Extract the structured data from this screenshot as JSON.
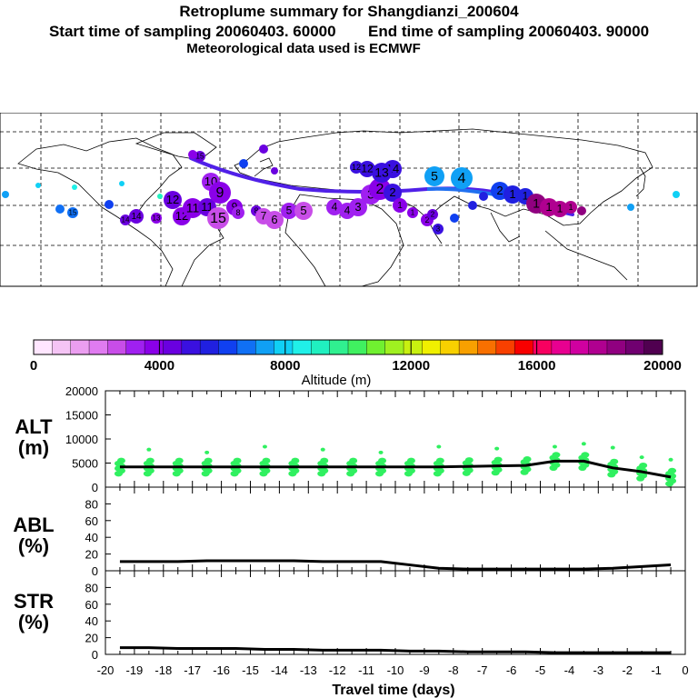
{
  "header": {
    "title": "Retroplume summary for Shangdianzi_200604",
    "subtitle_start": "Start time of sampling 20060403. 60000",
    "subtitle_end": "End time of sampling 20060403. 90000",
    "met_line": "Meteorological data used is ECMWF"
  },
  "colorbar": {
    "label": "Altitude (m)",
    "tick_labels": [
      "0",
      "4000",
      "8000",
      "12000",
      "16000",
      "20000"
    ],
    "colors": [
      "#ffe6ff",
      "#f5c4f5",
      "#eb9ef0",
      "#e07bf0",
      "#c84de8",
      "#a020f0",
      "#8a00e8",
      "#6a00e0",
      "#3a10e0",
      "#2020e0",
      "#1040f0",
      "#1070f5",
      "#10a0f5",
      "#10d0f5",
      "#20f0e8",
      "#20f0c0",
      "#30f090",
      "#40f060",
      "#70f030",
      "#a0f020",
      "#c8f010",
      "#f0f000",
      "#f8d000",
      "#f8a000",
      "#f87000",
      "#f84000",
      "#f80000",
      "#f80060",
      "#e80090",
      "#d000a0",
      "#b00090",
      "#900080",
      "#700070",
      "#500050"
    ]
  },
  "map": {
    "plume_numbers": [
      "15",
      "14",
      "13",
      "12",
      "11",
      "10",
      "9",
      "8",
      "7",
      "6",
      "5",
      "4",
      "3",
      "2",
      "1"
    ]
  },
  "chart_data": [
    {
      "type": "line",
      "panel": "ALT",
      "ylabel_line1": "ALT",
      "ylabel_line2": "(m)",
      "ylim": [
        0,
        20000
      ],
      "y_ticks": [
        "0",
        "5000",
        "10000",
        "15000",
        "20000"
      ],
      "xlim": [
        -20,
        0
      ],
      "x": [
        -19.5,
        -18.5,
        -17.5,
        -16.5,
        -15.5,
        -14.5,
        -13.5,
        -12.5,
        -11.5,
        -10.5,
        -9.5,
        -8.5,
        -7.5,
        -6.5,
        -5.5,
        -4.5,
        -3.5,
        -2.5,
        -1.5,
        -0.5
      ],
      "series": [
        {
          "name": "median altitude",
          "values": [
            4200,
            4200,
            4200,
            4200,
            4200,
            4200,
            4200,
            4200,
            4200,
            4200,
            4200,
            4200,
            4300,
            4400,
            4500,
            5400,
            5400,
            4000,
            3200,
            2100
          ]
        }
      ]
    },
    {
      "type": "line",
      "panel": "ABL",
      "ylabel_line1": "ABL",
      "ylabel_line2": "(%)",
      "ylim": [
        0,
        100
      ],
      "y_ticks": [
        "0",
        "20",
        "40",
        "60",
        "80"
      ],
      "xlim": [
        -20,
        0
      ],
      "x": [
        -19.5,
        -18.5,
        -17.5,
        -16.5,
        -15.5,
        -14.5,
        -13.5,
        -12.5,
        -11.5,
        -10.5,
        -9.5,
        -8.5,
        -7.5,
        -6.5,
        -5.5,
        -4.5,
        -3.5,
        -2.5,
        -1.5,
        -0.5
      ],
      "series": [
        {
          "name": "ABL fraction",
          "values": [
            11,
            11,
            11,
            12,
            12,
            12,
            12,
            11,
            11,
            11,
            7,
            3,
            2,
            2,
            2,
            2,
            2,
            3,
            5,
            7
          ]
        }
      ]
    },
    {
      "type": "line",
      "panel": "STR",
      "ylabel_line1": "STR",
      "ylabel_line2": "(%)",
      "ylim": [
        0,
        100
      ],
      "y_ticks": [
        "0",
        "20",
        "40",
        "60",
        "80"
      ],
      "xlim": [
        -20,
        0
      ],
      "xlabel": "Travel time (days)",
      "x_ticks": [
        "-20",
        "-19",
        "-18",
        "-17",
        "-16",
        "-15",
        "-14",
        "-13",
        "-12",
        "-11",
        "-10",
        "-9",
        "-8",
        "-7",
        "-6",
        "-5",
        "-4",
        "-3",
        "-2",
        "-1",
        "0"
      ],
      "x": [
        -19.5,
        -18.5,
        -17.5,
        -16.5,
        -15.5,
        -14.5,
        -13.5,
        -12.5,
        -11.5,
        -10.5,
        -9.5,
        -8.5,
        -7.5,
        -6.5,
        -5.5,
        -4.5,
        -3.5,
        -2.5,
        -1.5,
        -0.5
      ],
      "series": [
        {
          "name": "stratospheric fraction",
          "values": [
            8,
            8,
            7,
            7,
            7,
            6,
            6,
            5,
            5,
            5,
            4,
            4,
            3,
            3,
            3,
            2,
            2,
            2,
            2,
            2
          ]
        }
      ]
    }
  ]
}
